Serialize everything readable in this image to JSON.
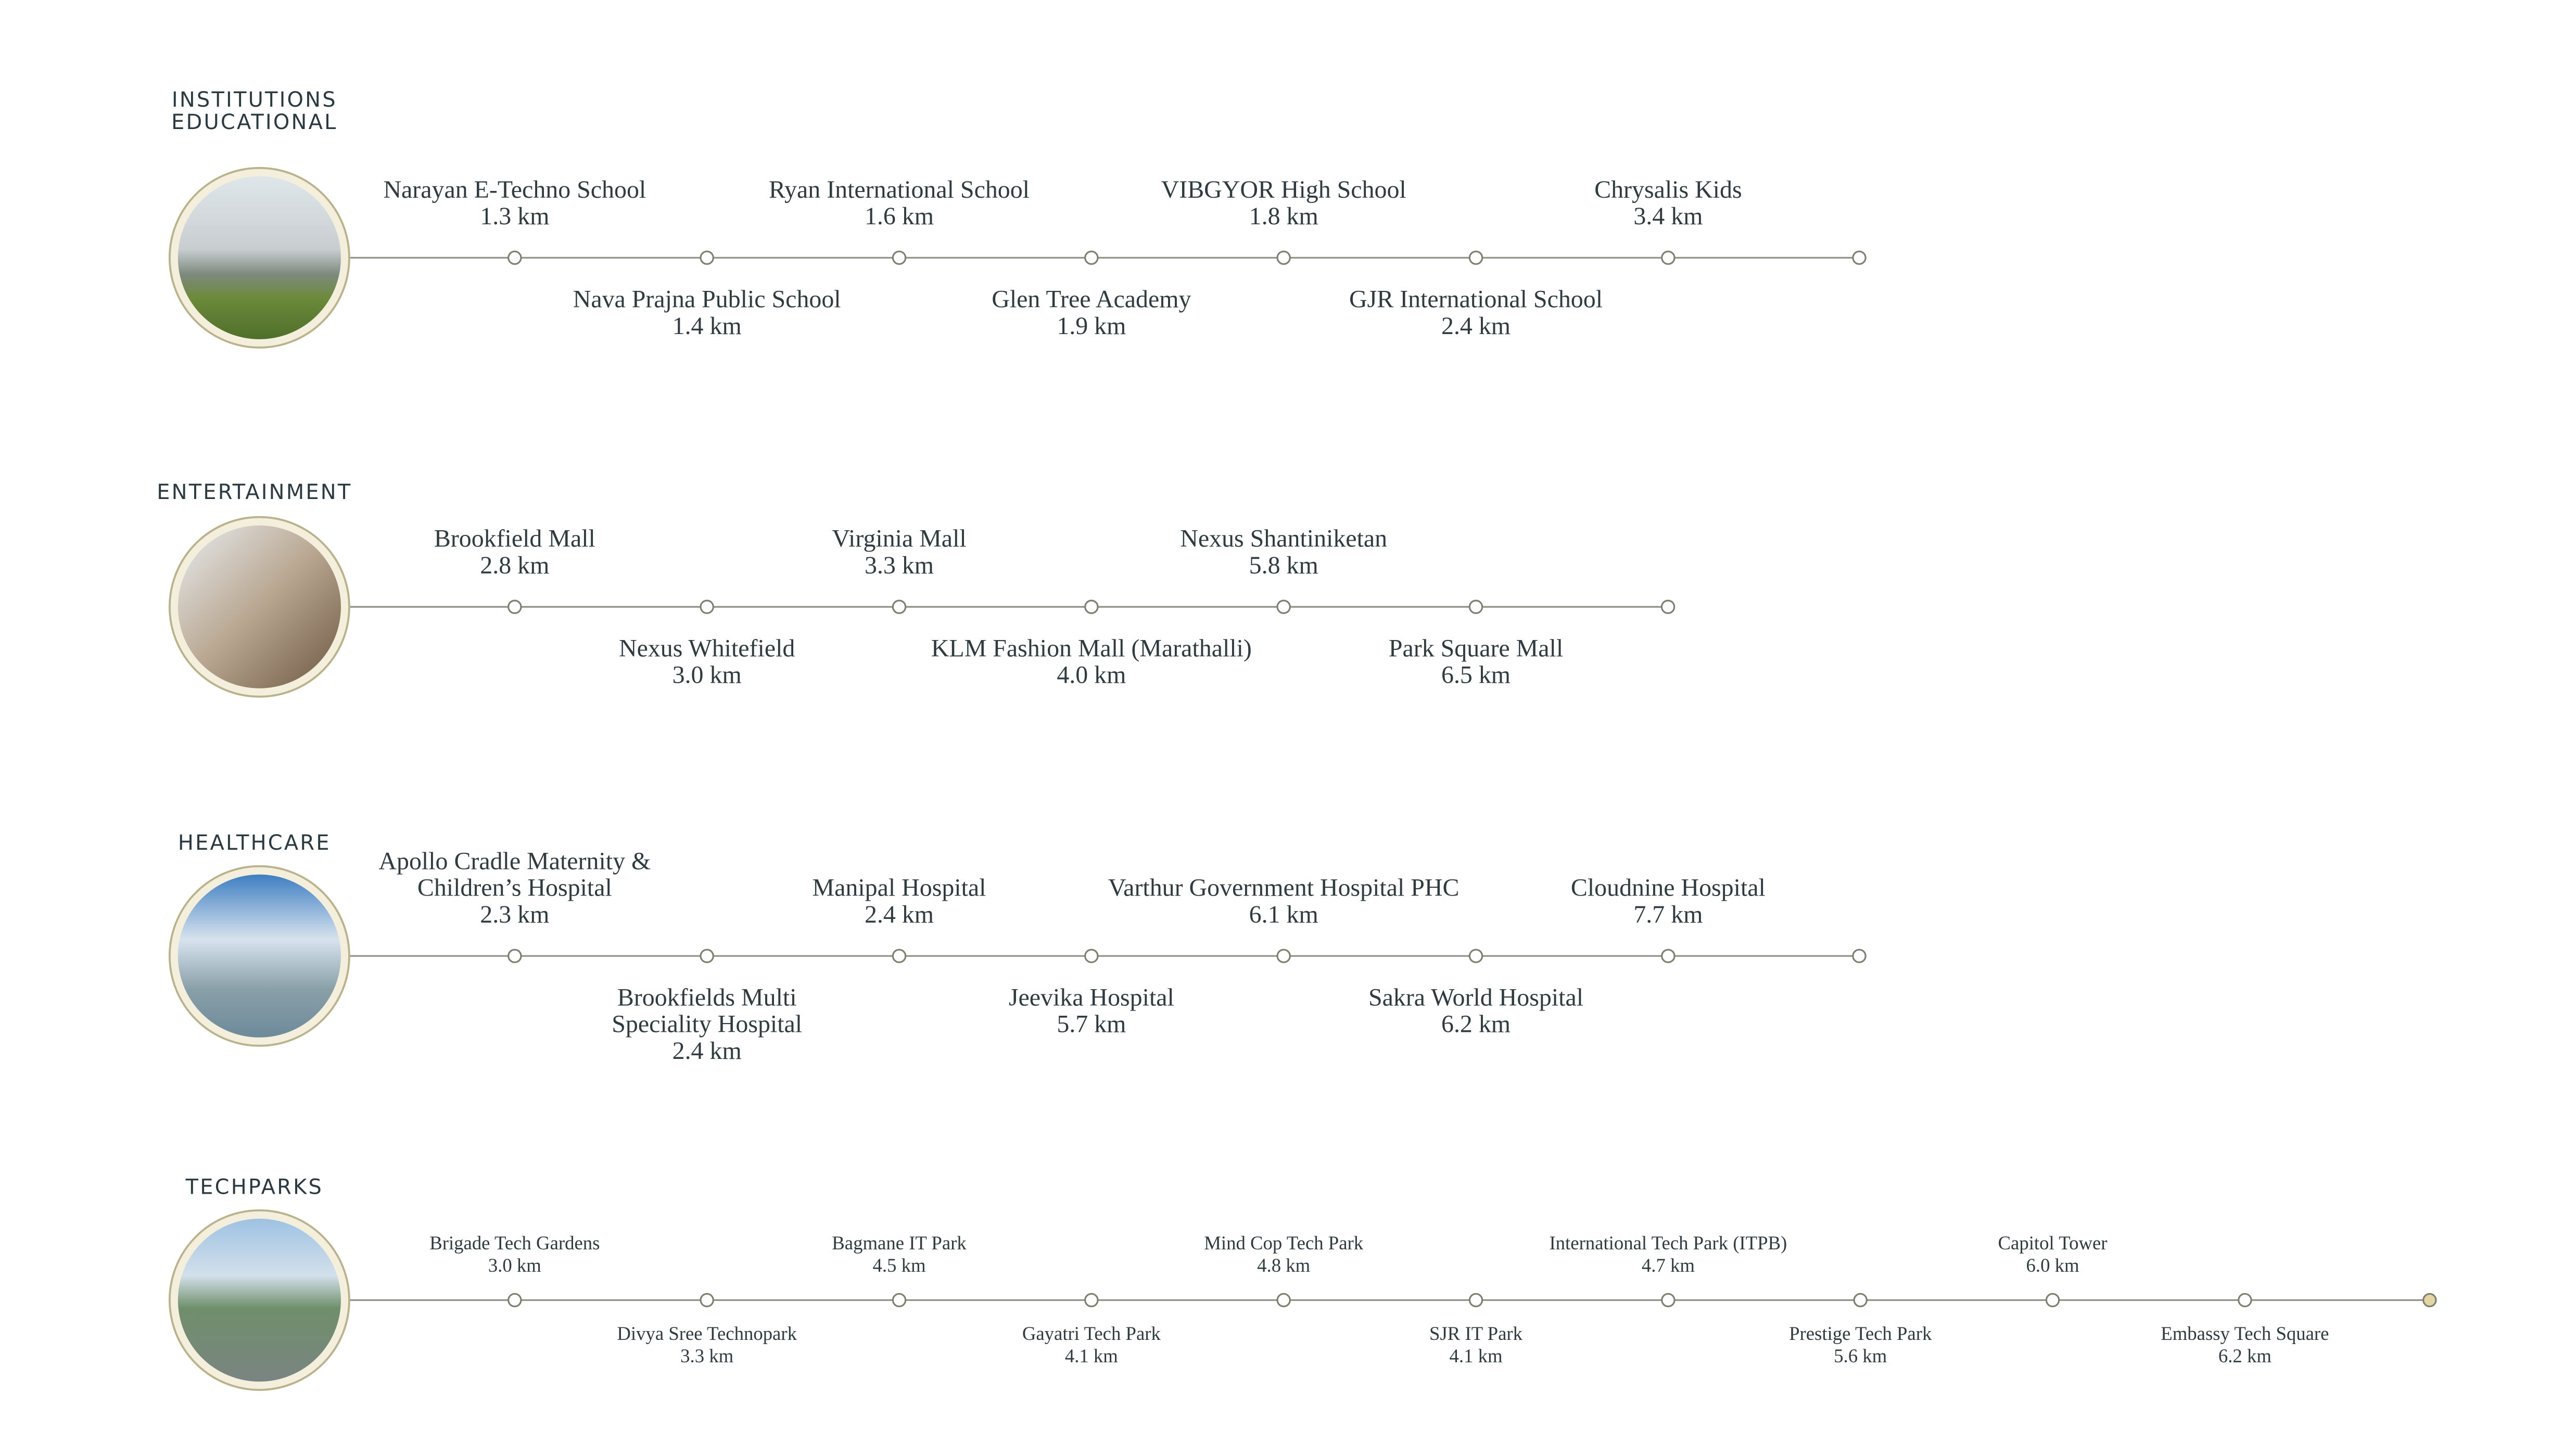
{
  "sections": [
    {
      "title_lines": [
        "INSTITUTIONS",
        "EDUCATIONAL"
      ],
      "items": [
        {
          "name_lines": [
            "Narayan E-Techno School"
          ],
          "distance": "1.3 km"
        },
        {
          "name_lines": [
            "Nava Prajna Public School"
          ],
          "distance": "1.4 km"
        },
        {
          "name_lines": [
            "Ryan International School"
          ],
          "distance": "1.6 km"
        },
        {
          "name_lines": [
            "Glen Tree Academy"
          ],
          "distance": "1.9 km"
        },
        {
          "name_lines": [
            "VIBGYOR High School"
          ],
          "distance": "1.8 km"
        },
        {
          "name_lines": [
            "GJR International School"
          ],
          "distance": "2.4 km"
        },
        {
          "name_lines": [
            "Chrysalis Kids"
          ],
          "distance": "3.4 km"
        }
      ]
    },
    {
      "title_lines": [
        "ENTERTAINMENT"
      ],
      "items": [
        {
          "name_lines": [
            "Brookfield Mall"
          ],
          "distance": "2.8 km"
        },
        {
          "name_lines": [
            "Nexus Whitefield"
          ],
          "distance": "3.0 km"
        },
        {
          "name_lines": [
            "Virginia Mall"
          ],
          "distance": "3.3 km"
        },
        {
          "name_lines": [
            "KLM Fashion Mall (Marathalli)"
          ],
          "distance": "4.0 km"
        },
        {
          "name_lines": [
            "Nexus Shantiniketan"
          ],
          "distance": "5.8 km"
        },
        {
          "name_lines": [
            "Park Square Mall"
          ],
          "distance": "6.5 km"
        }
      ]
    },
    {
      "title_lines": [
        "HEALTHCARE"
      ],
      "items": [
        {
          "name_lines": [
            "Apollo Cradle Maternity &",
            "Children’s Hospital"
          ],
          "distance": "2.3 km"
        },
        {
          "name_lines": [
            "Brookfields Multi",
            "Speciality Hospital"
          ],
          "distance": "2.4 km"
        },
        {
          "name_lines": [
            "Manipal Hospital"
          ],
          "distance": "2.4 km"
        },
        {
          "name_lines": [
            "Jeevika Hospital"
          ],
          "distance": "5.7 km"
        },
        {
          "name_lines": [
            "Varthur Government Hospital PHC"
          ],
          "distance": "6.1 km"
        },
        {
          "name_lines": [
            "Sakra World Hospital"
          ],
          "distance": "6.2 km"
        },
        {
          "name_lines": [
            "Cloudnine Hospital"
          ],
          "distance": "7.7 km"
        }
      ]
    },
    {
      "title_lines": [
        "TECHPARKS"
      ],
      "items": [
        {
          "name_lines": [
            "Brigade Tech Gardens"
          ],
          "distance": "3.0 km"
        },
        {
          "name_lines": [
            "Divya Sree Technopark"
          ],
          "distance": "3.3 km"
        },
        {
          "name_lines": [
            "Bagmane IT Park"
          ],
          "distance": "4.5 km"
        },
        {
          "name_lines": [
            "Gayatri Tech Park"
          ],
          "distance": "4.1 km"
        },
        {
          "name_lines": [
            "Mind Cop Tech Park"
          ],
          "distance": "4.8 km"
        },
        {
          "name_lines": [
            "SJR IT Park"
          ],
          "distance": "4.1 km"
        },
        {
          "name_lines": [
            "International Tech Park (ITPB)"
          ],
          "distance": "4.7 km"
        },
        {
          "name_lines": [
            "Prestige Tech Park"
          ],
          "distance": "5.6 km"
        },
        {
          "name_lines": [
            "Capitol Tower"
          ],
          "distance": "6.0 km"
        },
        {
          "name_lines": [
            "Embassy Tech Square"
          ],
          "distance": "6.2 km"
        }
      ]
    }
  ]
}
